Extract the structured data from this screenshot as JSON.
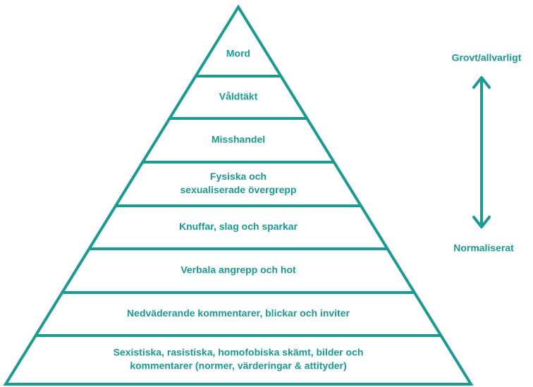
{
  "levels": [
    {
      "lines": [
        "Mord"
      ]
    },
    {
      "lines": [
        "Våldtäkt"
      ]
    },
    {
      "lines": [
        "Misshandel"
      ]
    },
    {
      "lines": [
        "Fysiska och",
        "sexualiserade övergrepp"
      ]
    },
    {
      "lines": [
        "Knuffar, slag och sparkar"
      ]
    },
    {
      "lines": [
        "Verbala angrepp och hot"
      ]
    },
    {
      "lines": [
        "Nedväderande kommentarer, blickar och inviter"
      ]
    },
    {
      "lines": [
        "Sexistiska, rasistiska, homofobiska skämt, bilder och",
        "kommentarer (normer, värderingar & attityder)"
      ]
    }
  ],
  "scale": {
    "top": "Grovt/allvarligt",
    "bottom": "Normaliserat"
  }
}
